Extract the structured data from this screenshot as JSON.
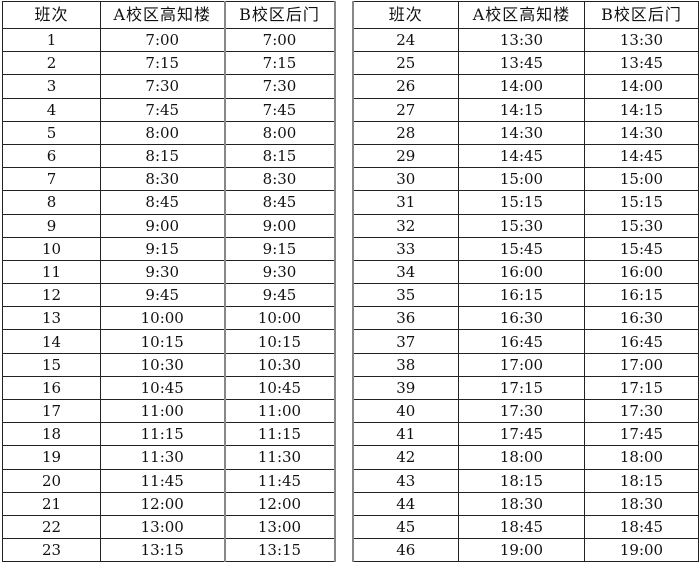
{
  "headers": [
    "班次",
    "A校区高知楼",
    "B校区后门"
  ],
  "left": [
    [
      "1",
      "7:00",
      "7:00"
    ],
    [
      "2",
      "7:15",
      "7:15"
    ],
    [
      "3",
      "7:30",
      "7:30"
    ],
    [
      "4",
      "7:45",
      "7:45"
    ],
    [
      "5",
      "8:00",
      "8:00"
    ],
    [
      "6",
      "8:15",
      "8:15"
    ],
    [
      "7",
      "8:30",
      "8:30"
    ],
    [
      "8",
      "8:45",
      "8:45"
    ],
    [
      "9",
      "9:00",
      "9:00"
    ],
    [
      "10",
      "9:15",
      "9:15"
    ],
    [
      "11",
      "9:30",
      "9:30"
    ],
    [
      "12",
      "9:45",
      "9:45"
    ],
    [
      "13",
      "10:00",
      "10:00"
    ],
    [
      "14",
      "10:15",
      "10:15"
    ],
    [
      "15",
      "10:30",
      "10:30"
    ],
    [
      "16",
      "10:45",
      "10:45"
    ],
    [
      "17",
      "11:00",
      "11:00"
    ],
    [
      "18",
      "11:15",
      "11:15"
    ],
    [
      "19",
      "11:30",
      "11:30"
    ],
    [
      "20",
      "11:45",
      "11:45"
    ],
    [
      "21",
      "12:00",
      "12:00"
    ],
    [
      "22",
      "13:00",
      "13:00"
    ],
    [
      "23",
      "13:15",
      "13:15"
    ]
  ],
  "right": [
    [
      "24",
      "13:30",
      "13:30"
    ],
    [
      "25",
      "13:45",
      "13:45"
    ],
    [
      "26",
      "14:00",
      "14:00"
    ],
    [
      "27",
      "14:15",
      "14:15"
    ],
    [
      "28",
      "14:30",
      "14:30"
    ],
    [
      "29",
      "14:45",
      "14:45"
    ],
    [
      "30",
      "15:00",
      "15:00"
    ],
    [
      "31",
      "15:15",
      "15:15"
    ],
    [
      "32",
      "15:30",
      "15:30"
    ],
    [
      "33",
      "15:45",
      "15:45"
    ],
    [
      "34",
      "16:00",
      "16:00"
    ],
    [
      "35",
      "16:15",
      "16:15"
    ],
    [
      "36",
      "16:30",
      "16:30"
    ],
    [
      "37",
      "16:45",
      "16:45"
    ],
    [
      "38",
      "17:00",
      "17:00"
    ],
    [
      "39",
      "17:15",
      "17:15"
    ],
    [
      "40",
      "17:30",
      "17:30"
    ],
    [
      "41",
      "17:45",
      "17:45"
    ],
    [
      "42",
      "18:00",
      "18:00"
    ],
    [
      "43",
      "18:15",
      "18:15"
    ],
    [
      "44",
      "18:30",
      "18:30"
    ],
    [
      "45",
      "18:45",
      "18:45"
    ],
    [
      "46",
      "19:00",
      "19:00"
    ]
  ]
}
